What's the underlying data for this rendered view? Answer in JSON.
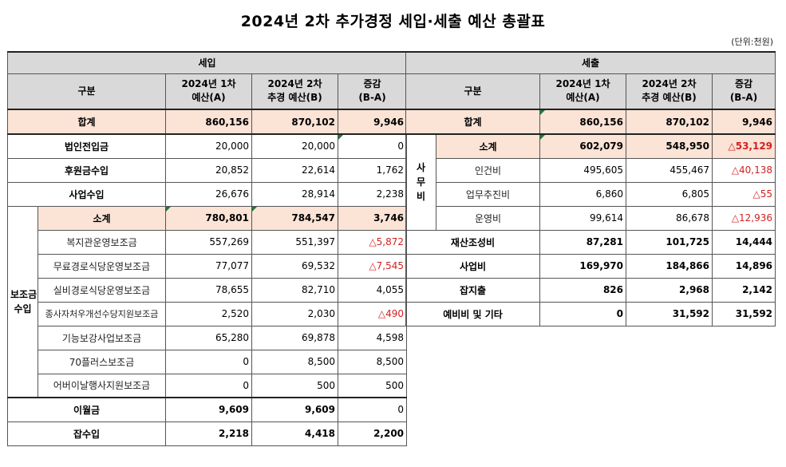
{
  "title": "2024년 2차 추가경정 세입·세출 예산 총괄표",
  "unit": "(단위:천원)",
  "revenue": {
    "section_label": "세입",
    "headers": [
      "구분",
      "2024년 1차\n예산(A)",
      "2024년 2차\n추경 예산(B)",
      "증감\n(B-A)"
    ],
    "total": {
      "label": "합계",
      "a": "860,156",
      "b": "870,102",
      "diff": "9,946"
    },
    "rows": [
      {
        "label": "법인전입금",
        "a": "20,000",
        "b": "20,000",
        "diff": "0"
      },
      {
        "label": "후원금수입",
        "a": "20,852",
        "b": "22,614",
        "diff": "1,762"
      },
      {
        "label": "사업수입",
        "a": "26,676",
        "b": "28,914",
        "diff": "2,238"
      }
    ],
    "subsidy_group": {
      "label": "보조금\n수입",
      "subtotal": {
        "label": "소계",
        "a": "780,801",
        "b": "784,547",
        "diff": "3,746"
      },
      "items": [
        {
          "label": "복지관운영보조금",
          "a": "557,269",
          "b": "551,397",
          "diff": "△5,872"
        },
        {
          "label": "무료경로식당운영보조금",
          "a": "77,077",
          "b": "69,532",
          "diff": "△7,545"
        },
        {
          "label": "실비경로식당운영보조금",
          "a": "78,655",
          "b": "82,710",
          "diff": "4,055"
        },
        {
          "label": "종사자처우개선수당지원보조금",
          "a": "2,520",
          "b": "2,030",
          "diff": "△490"
        },
        {
          "label": "기능보강사업보조금",
          "a": "65,280",
          "b": "69,878",
          "diff": "4,598"
        },
        {
          "label": "70플러스보조금",
          "a": "0",
          "b": "8,500",
          "diff": "8,500"
        },
        {
          "label": "어버이날행사지원보조금",
          "a": "0",
          "b": "500",
          "diff": "500"
        }
      ]
    },
    "bottom_rows": [
      {
        "label": "이월금",
        "a": "9,609",
        "b": "9,609",
        "diff": "0"
      },
      {
        "label": "잡수입",
        "a": "2,218",
        "b": "4,418",
        "diff": "2,200"
      }
    ]
  },
  "expenditure": {
    "section_label": "세출",
    "headers": [
      "구분",
      "2024년 1차\n예산(A)",
      "2024년 2차\n추경 예산(B)",
      "증감\n(B-A)"
    ],
    "total": {
      "label": "합계",
      "a": "860,156",
      "b": "870,102",
      "diff": "9,946"
    },
    "office_group": {
      "label": "사\n무\n비",
      "subtotal": {
        "label": "소계",
        "a": "602,079",
        "b": "548,950",
        "diff": "△53,129"
      },
      "items": [
        {
          "label": "인건비",
          "a": "495,605",
          "b": "455,467",
          "diff": "△40,138"
        },
        {
          "label": "업무추진비",
          "a": "6,860",
          "b": "6,805",
          "diff": "△55"
        },
        {
          "label": "운영비",
          "a": "99,614",
          "b": "86,678",
          "diff": "△12,936"
        }
      ]
    },
    "rows": [
      {
        "label": "재산조성비",
        "a": "87,281",
        "b": "101,725",
        "diff": "14,444"
      },
      {
        "label": "사업비",
        "a": "169,970",
        "b": "184,866",
        "diff": "14,896"
      },
      {
        "label": "잡지출",
        "a": "826",
        "b": "2,968",
        "diff": "2,142"
      },
      {
        "label": "예비비 및 기타",
        "a": "0",
        "b": "31,592",
        "diff": "31,592"
      }
    ]
  },
  "colors": {
    "header_gray": "#d9d9d9",
    "highlight_pink": "#fbe3d6",
    "negative_red": "#d42020",
    "cell_marker_green": "#1f7a3a"
  }
}
